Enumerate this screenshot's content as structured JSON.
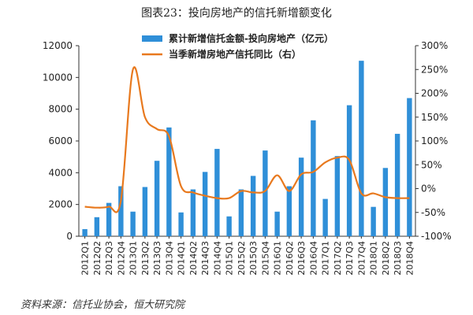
{
  "chart_data": {
    "type": "bar",
    "title": "图表23：投向房地产的信托新增额变化",
    "source": "资料来源：信托业协会，恒大研究院",
    "categories": [
      "2012Q1",
      "2012Q2",
      "2012Q3",
      "2012Q4",
      "2013Q1",
      "2013Q2",
      "2013Q3",
      "2013Q4",
      "2014Q1",
      "2014Q2",
      "2014Q3",
      "2014Q4",
      "2015Q1",
      "2015Q2",
      "2015Q3",
      "2015Q4",
      "2016Q1",
      "2016Q2",
      "2016Q3",
      "2016Q4",
      "2017Q1",
      "2017Q2",
      "2017Q3",
      "2017Q4",
      "2018Q1",
      "2018Q2",
      "2018Q3",
      "2018Q4"
    ],
    "series": [
      {
        "name": "累计新增信托金额-投向房地产（亿元）",
        "type": "bar",
        "axis": "left",
        "color": "#2f8fd8",
        "values": [
          450,
          1200,
          2100,
          3150,
          1550,
          3100,
          4750,
          6850,
          1500,
          2950,
          4050,
          5500,
          1250,
          2950,
          3800,
          5400,
          1550,
          3150,
          4950,
          7300,
          2350,
          5050,
          8250,
          11050,
          1850,
          4300,
          6450,
          8700
        ]
      },
      {
        "name": "当季新增房地产信托同比（右）",
        "type": "line",
        "axis": "right",
        "color": "#e8791e",
        "values": [
          -38,
          -40,
          -38,
          -25,
          250,
          150,
          125,
          110,
          5,
          -8,
          -15,
          -20,
          -20,
          -5,
          -8,
          -5,
          28,
          -5,
          30,
          35,
          55,
          65,
          60,
          -10,
          -10,
          -18,
          -20,
          -20
        ]
      }
    ],
    "y_left": {
      "min": 0,
      "max": 12000,
      "ticks": [
        "0",
        "2000",
        "4000",
        "6000",
        "8000",
        "10000",
        "12000"
      ]
    },
    "y_right": {
      "min": -100,
      "max": 300,
      "ticks": [
        "-100%",
        "-50%",
        "0%",
        "50%",
        "100%",
        "150%",
        "200%",
        "250%",
        "300%"
      ]
    },
    "grid": false,
    "legend_position": "top-right"
  }
}
